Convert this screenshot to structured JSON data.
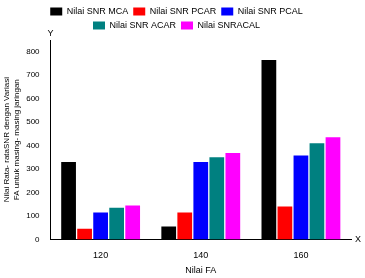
{
  "chart_data": {
    "type": "bar",
    "x_label": "Nilai FA",
    "y_label": "Nilai Rata- rataSNR dengan Variasi FA untuk masing- masing jaringan",
    "annotations": [
      "Y",
      "X"
    ],
    "categories": [
      "120",
      "140",
      "160"
    ],
    "series": [
      {
        "name": "Nilai SNR MCA",
        "color": "#000000",
        "values": [
          330,
          55,
          765
        ]
      },
      {
        "name": "Nilai SNR PCAR",
        "color": "#ff0000",
        "values": [
          45,
          115,
          140
        ]
      },
      {
        "name": "Nilai SNR PCAL",
        "color": "#0000ff",
        "values": [
          115,
          330,
          358
        ]
      },
      {
        "name": "Nilai SNR ACAR",
        "color": "#008080",
        "values": [
          135,
          350,
          410
        ]
      },
      {
        "name": "Nilai SNRACAL",
        "color": "#ff00ff",
        "values": [
          145,
          368,
          435
        ]
      }
    ],
    "ylim": [
      0,
      850
    ],
    "yticks": [
      0,
      100,
      200,
      300,
      400,
      500,
      600,
      700,
      800
    ],
    "grid": false,
    "legend": "top"
  }
}
